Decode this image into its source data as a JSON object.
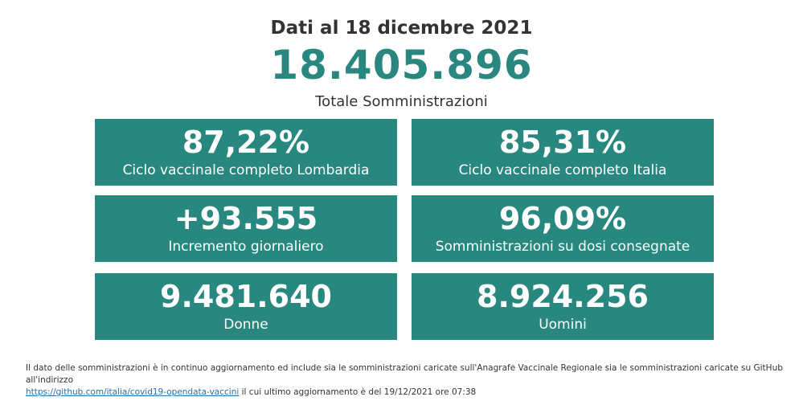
{
  "header": {
    "date_title": "Dati al 18 dicembre 2021",
    "total_value": "18.405.896",
    "total_label": "Totale Somministrazioni"
  },
  "cards": [
    {
      "value": "87,22%",
      "label": "Ciclo vaccinale completo Lombardia"
    },
    {
      "value": "85,31%",
      "label": "Ciclo vaccinale completo Italia"
    },
    {
      "value": "+93.555",
      "label": "Incremento giornaliero"
    },
    {
      "value": "96,09%",
      "label": "Somministrazioni su dosi consegnate"
    },
    {
      "value": "9.481.640",
      "label": "Donne"
    },
    {
      "value": "8.924.256",
      "label": "Uomini"
    }
  ],
  "footnote": {
    "text_line1": "Il dato delle somministrazioni è in continuo aggiornamento ed include sia le somministrazioni caricate sull'Anagrafe Vaccinale Regionale sia le somministrazioni caricate su GitHub all'indirizzo",
    "link_text": "https://github.com/italia/covid19-opendata-vaccini",
    "text_after_link": " il cui ultimo aggiornamento è del 19/12/2021 ore 07:38"
  },
  "colors": {
    "accent": "#288880",
    "total": "#2a877f",
    "text": "#333333",
    "link": "#2a6fa8"
  }
}
